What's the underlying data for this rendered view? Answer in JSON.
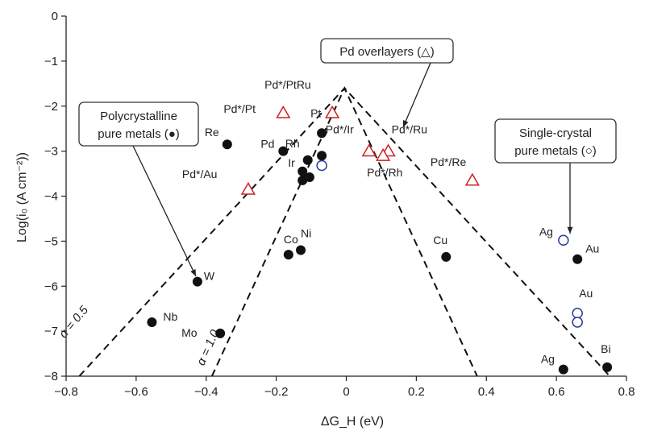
{
  "chart_data": {
    "type": "scatter",
    "xlabel": "ΔG_H (eV)",
    "ylabel": "Log(i₀ (A cm⁻²))",
    "xlim": [
      -0.8,
      0.8
    ],
    "ylim": [
      -8,
      0
    ],
    "xticks": [
      "−0.8",
      "−0.6",
      "−0.4",
      "−0.2",
      "0",
      "0.2",
      "0.4",
      "0.6",
      "0.8"
    ],
    "yticks": [
      "0",
      "−1",
      "−2",
      "−3",
      "−4",
      "−5",
      "−6",
      "−7",
      "−8"
    ],
    "xtick_values": [
      -0.8,
      -0.6,
      -0.4,
      -0.2,
      0,
      0.2,
      0.4,
      0.6,
      0.8
    ],
    "ytick_values": [
      0,
      -1,
      -2,
      -3,
      -4,
      -5,
      -6,
      -7,
      -8
    ],
    "grid": false,
    "series": [
      {
        "name": "Polycrystalline pure metals",
        "marker": "filled-circle",
        "color": "#111111",
        "points": [
          {
            "label": "Re",
            "x": -0.34,
            "y": -2.85
          },
          {
            "label": "Pd",
            "x": -0.18,
            "y": -3.0
          },
          {
            "label": "Rh",
            "x": -0.11,
            "y": -3.2
          },
          {
            "label": "Ir",
            "x": -0.125,
            "y": -3.45
          },
          {
            "label": "",
            "x": -0.125,
            "y": -3.65
          },
          {
            "label": "",
            "x": -0.105,
            "y": -3.58
          },
          {
            "label": "Pt",
            "x": -0.07,
            "y": -2.6
          },
          {
            "label": "",
            "x": -0.07,
            "y": -3.1
          },
          {
            "label": "W",
            "x": -0.425,
            "y": -5.9
          },
          {
            "label": "Nb",
            "x": -0.555,
            "y": -6.8
          },
          {
            "label": "Mo",
            "x": -0.36,
            "y": -7.05
          },
          {
            "label": "Co",
            "x": -0.165,
            "y": -5.3
          },
          {
            "label": "Ni",
            "x": -0.13,
            "y": -5.2
          },
          {
            "label": "Cu",
            "x": 0.285,
            "y": -5.35
          },
          {
            "label": "Au",
            "x": 0.66,
            "y": -5.4
          },
          {
            "label": "Ag",
            "x": 0.62,
            "y": -7.85
          },
          {
            "label": "Bi",
            "x": 0.745,
            "y": -7.8
          }
        ]
      },
      {
        "name": "Single-crystal pure metals",
        "marker": "open-circle",
        "color": "#2a3a9a",
        "points": [
          {
            "label": "",
            "x": -0.07,
            "y": -3.32
          },
          {
            "label": "Ag",
            "x": 0.62,
            "y": -4.98
          },
          {
            "label": "Au",
            "x": 0.66,
            "y": -6.6
          },
          {
            "label": "",
            "x": 0.66,
            "y": -6.8
          }
        ]
      },
      {
        "name": "Pd overlayers",
        "marker": "open-triangle",
        "color": "#cc2222",
        "points": [
          {
            "label": "Pd*/Pt",
            "x": -0.18,
            "y": -2.15
          },
          {
            "label": "Pd*/PtRu",
            "x": -0.04,
            "y": -2.15
          },
          {
            "label": "Pd*/Au",
            "x": -0.28,
            "y": -3.85
          },
          {
            "label": "Pd*/Ir",
            "x": 0.065,
            "y": -3.0
          },
          {
            "label": "Pd*/Ru",
            "x": 0.12,
            "y": -3.0
          },
          {
            "label": "Pd*/Rh",
            "x": 0.105,
            "y": -3.1
          },
          {
            "label": "Pd*/Re",
            "x": 0.36,
            "y": -3.65
          }
        ]
      }
    ],
    "curves": [
      {
        "label": "α = 0.5",
        "peak_x": -0.005,
        "peak_y": -1.6,
        "slope_per_eV": 8.45
      },
      {
        "label": "α = 1.0",
        "peak_x": -0.005,
        "peak_y": -1.6,
        "slope_per_eV": 16.9
      }
    ],
    "callouts": [
      {
        "id": "poly",
        "lines": [
          "Polycrystalline",
          "pure metals (●)"
        ]
      },
      {
        "id": "single",
        "lines": [
          "Single-crystal",
          "pure metals (○)"
        ]
      },
      {
        "id": "overlay",
        "lines": [
          "Pd overlayers (△)"
        ]
      }
    ]
  }
}
